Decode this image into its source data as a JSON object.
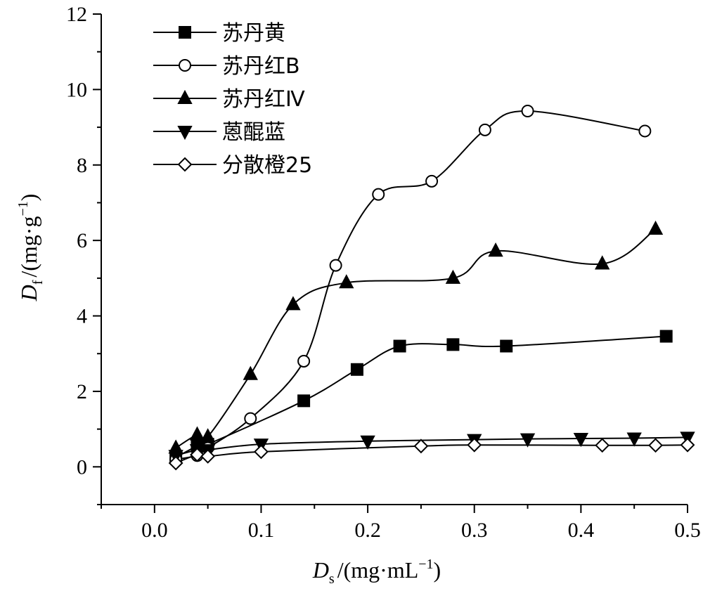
{
  "chart_data": {
    "type": "line",
    "xlabel": {
      "var": "D",
      "sub": "s",
      "unit": "/(mg·mL",
      "exp": "−1",
      "close": ")"
    },
    "ylabel": {
      "var": "D",
      "sub": "f",
      "unit": "/(mg·g",
      "exp": "−1",
      "close": ")"
    },
    "xlim": [
      -0.05,
      0.5
    ],
    "ylim": [
      -1,
      12
    ],
    "xticks": [
      0.0,
      0.1,
      0.2,
      0.3,
      0.4,
      0.5
    ],
    "xtick_labels": [
      "0.0",
      "0.1",
      "0.2",
      "0.3",
      "0.4",
      "0.5"
    ],
    "yticks": [
      0,
      2,
      4,
      6,
      8,
      10,
      12
    ],
    "ytick_labels": [
      "0",
      "2",
      "4",
      "6",
      "8",
      "10",
      "12"
    ],
    "legend_position": "top-left",
    "series": [
      {
        "name": "苏丹黄",
        "marker": "square-filled",
        "x": [
          0.02,
          0.04,
          0.05,
          0.14,
          0.19,
          0.23,
          0.28,
          0.33,
          0.48
        ],
        "y": [
          0.25,
          0.55,
          0.6,
          1.75,
          2.58,
          3.2,
          3.24,
          3.2,
          3.46
        ]
      },
      {
        "name": "苏丹红B",
        "marker": "circle-open",
        "x": [
          0.02,
          0.04,
          0.05,
          0.09,
          0.14,
          0.17,
          0.21,
          0.26,
          0.31,
          0.35,
          0.46
        ],
        "y": [
          0.2,
          0.3,
          0.5,
          1.28,
          2.8,
          5.34,
          7.22,
          7.57,
          8.93,
          9.43,
          8.9
        ]
      },
      {
        "name": "苏丹红Ⅳ",
        "marker": "triangle-up-filled",
        "x": [
          0.02,
          0.04,
          0.05,
          0.09,
          0.13,
          0.18,
          0.28,
          0.32,
          0.42,
          0.47
        ],
        "y": [
          0.5,
          0.85,
          0.8,
          2.45,
          4.3,
          4.88,
          5.0,
          5.72,
          5.38,
          6.3
        ]
      },
      {
        "name": "蒽醌蓝",
        "marker": "triangle-down-filled",
        "x": [
          0.02,
          0.04,
          0.05,
          0.1,
          0.2,
          0.3,
          0.35,
          0.4,
          0.45,
          0.5
        ],
        "y": [
          0.3,
          0.45,
          0.45,
          0.6,
          0.68,
          0.72,
          0.74,
          0.75,
          0.76,
          0.78
        ]
      },
      {
        "name": "分散橙25",
        "marker": "diamond-open",
        "x": [
          0.02,
          0.04,
          0.05,
          0.1,
          0.25,
          0.3,
          0.42,
          0.47,
          0.5
        ],
        "y": [
          0.1,
          0.32,
          0.28,
          0.4,
          0.55,
          0.58,
          0.57,
          0.57,
          0.58
        ]
      }
    ]
  }
}
